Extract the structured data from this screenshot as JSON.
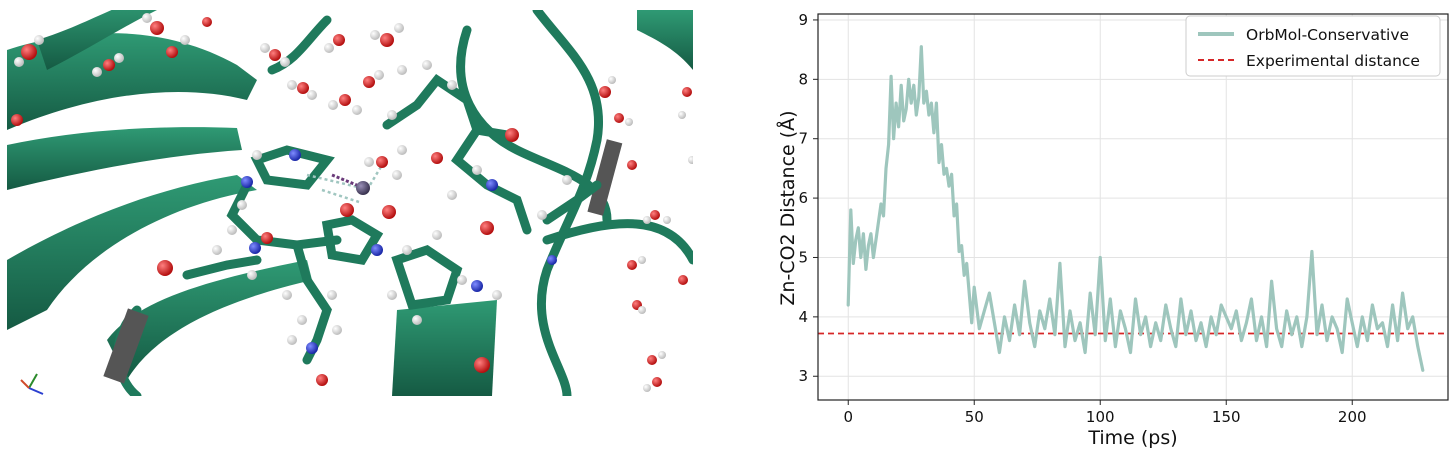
{
  "molecule_view": {
    "ribbon_color": "#1f7a5c",
    "carbon_color": "#1f7a5c",
    "oxygen_color": "#d11f1f",
    "nitrogen_color": "#2b3fd0",
    "hydrogen_color": "#f2f2f2",
    "zinc_color": "#5a5470"
  },
  "chart_data": {
    "type": "line",
    "xlabel": "Time (ps)",
    "ylabel": "Zn-CO2 Distance (Å)",
    "xlim": [
      -12,
      238
    ],
    "ylim": [
      2.6,
      9.1
    ],
    "xticks": [
      0,
      50,
      100,
      150,
      200
    ],
    "yticks": [
      3,
      4,
      5,
      6,
      7,
      8,
      9
    ],
    "grid": true,
    "legend_position": "top-right",
    "series": [
      {
        "name": "OrbMol-Conservative",
        "color": "#9ec6bd",
        "x": [
          0,
          1,
          2,
          3,
          4,
          5,
          6,
          7,
          8,
          9,
          10,
          11,
          12,
          13,
          14,
          15,
          16,
          17,
          18,
          19,
          20,
          21,
          22,
          23,
          24,
          25,
          26,
          27,
          28,
          29,
          30,
          31,
          32,
          33,
          34,
          35,
          36,
          37,
          38,
          39,
          40,
          41,
          42,
          43,
          44,
          45,
          46,
          47,
          48,
          49,
          50,
          52,
          54,
          56,
          58,
          60,
          62,
          64,
          66,
          68,
          70,
          72,
          74,
          76,
          78,
          80,
          82,
          84,
          86,
          88,
          90,
          92,
          94,
          96,
          98,
          100,
          102,
          104,
          106,
          108,
          110,
          112,
          114,
          116,
          118,
          120,
          122,
          124,
          126,
          128,
          130,
          132,
          134,
          136,
          138,
          140,
          142,
          144,
          146,
          148,
          150,
          152,
          154,
          156,
          158,
          160,
          162,
          164,
          166,
          168,
          170,
          172,
          174,
          176,
          178,
          180,
          182,
          184,
          186,
          188,
          190,
          192,
          194,
          196,
          198,
          200,
          202,
          204,
          206,
          208,
          210,
          212,
          214,
          216,
          218,
          220,
          222,
          224,
          226,
          228
        ],
        "y": [
          4.2,
          5.8,
          4.9,
          5.3,
          5.5,
          5.0,
          5.4,
          4.8,
          5.2,
          5.4,
          5.0,
          5.3,
          5.6,
          5.9,
          5.7,
          6.5,
          6.9,
          8.05,
          7.0,
          7.6,
          7.2,
          7.9,
          7.3,
          7.5,
          8.0,
          7.6,
          7.9,
          7.4,
          7.7,
          8.55,
          7.6,
          7.8,
          7.4,
          7.6,
          7.1,
          7.6,
          6.6,
          6.9,
          6.4,
          6.5,
          6.2,
          6.4,
          5.7,
          5.9,
          5.1,
          5.2,
          4.7,
          4.9,
          4.4,
          3.9,
          4.5,
          3.8,
          4.1,
          4.4,
          3.9,
          3.4,
          4.0,
          3.6,
          4.2,
          3.7,
          4.6,
          3.9,
          3.5,
          4.1,
          3.8,
          4.3,
          3.7,
          4.9,
          3.5,
          4.1,
          3.6,
          3.9,
          3.4,
          4.4,
          3.7,
          5.0,
          3.6,
          4.3,
          3.5,
          4.1,
          3.8,
          3.4,
          4.3,
          3.7,
          4.0,
          3.5,
          3.9,
          3.6,
          4.2,
          3.8,
          3.5,
          4.3,
          3.7,
          4.1,
          3.6,
          3.9,
          3.5,
          4.0,
          3.7,
          4.2,
          4.0,
          3.8,
          4.1,
          3.6,
          3.9,
          4.3,
          3.6,
          4.0,
          3.5,
          4.6,
          3.8,
          3.5,
          4.1,
          3.7,
          4.0,
          3.5,
          4.0,
          5.1,
          3.7,
          4.2,
          3.6,
          4.0,
          3.8,
          3.4,
          4.3,
          3.9,
          3.5,
          4.0,
          3.6,
          4.2,
          3.8,
          3.9,
          3.5,
          4.2,
          3.6,
          4.4,
          3.8,
          4.0,
          3.5,
          3.1
        ]
      },
      {
        "name": "Experimental distance",
        "color": "#d62728",
        "style": "dashed",
        "y_constant": 3.72
      }
    ]
  }
}
